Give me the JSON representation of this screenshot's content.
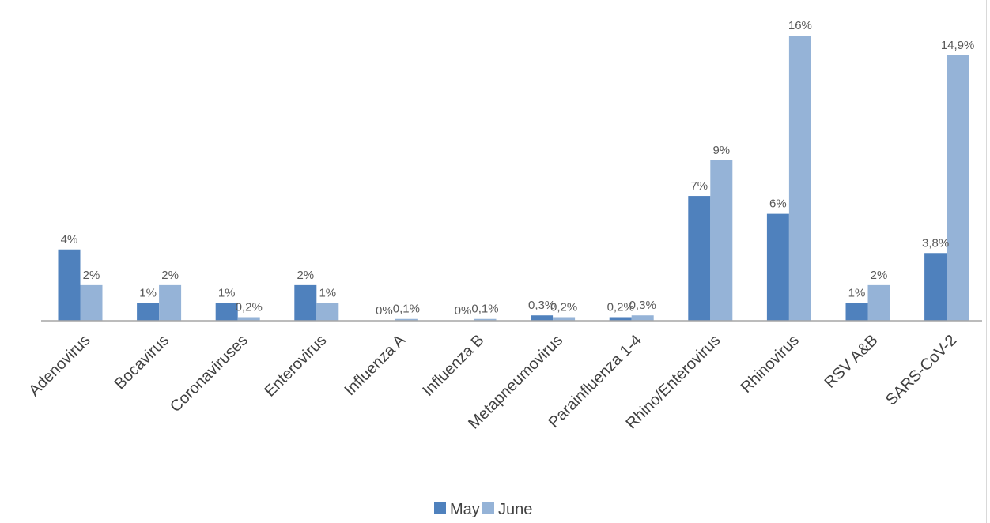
{
  "chart_data": {
    "type": "bar",
    "categories": [
      "Adenovirus",
      "Bocavirus",
      "Coronaviruses",
      "Enterovirus",
      "Influenza A",
      "Influenza B",
      "Metapneumovirus",
      "Parainfluenza 1-4",
      "Rhino/Enterovirus",
      "Rhinovirus",
      "RSV A&B",
      "SARS-CoV-2"
    ],
    "series": [
      {
        "name": "May",
        "color": "#4f81bd",
        "values": [
          4,
          1,
          1,
          2,
          0,
          0,
          0.3,
          0.2,
          7,
          6,
          1,
          3.8
        ],
        "labels": [
          "4%",
          "1%",
          "1%",
          "2%",
          "0%",
          "0%",
          "0,3%",
          "0,2%",
          "7%",
          "6%",
          "1%",
          "3,8%"
        ]
      },
      {
        "name": "June",
        "color": "#95b3d7",
        "values": [
          2,
          2,
          0.2,
          1,
          0.1,
          0.1,
          0.2,
          0.3,
          9,
          16,
          2,
          14.9
        ],
        "labels": [
          "2%",
          "2%",
          "0,2%",
          "1%",
          "0,1%",
          "0,1%",
          "0,2%",
          "0,3%",
          "9%",
          "16%",
          "2%",
          "14,9%"
        ]
      }
    ],
    "title": "",
    "xlabel": "",
    "ylabel": "",
    "ylim": [
      0,
      16
    ],
    "grid": false,
    "legend_position": "bottom"
  }
}
